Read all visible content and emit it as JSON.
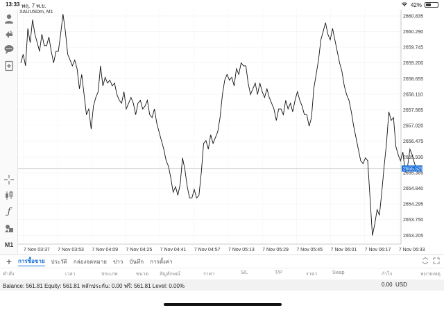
{
  "status_bar": {
    "time": "13:33",
    "date": "พฤ. 7 พ.ย.",
    "battery": "42%",
    "battery_level": 0.42
  },
  "chart": {
    "symbol_title": "XAUUSDm, M1",
    "current_price": "2655.529",
    "line_color": "#111111",
    "price_tag_color": "#1b6fd8"
  },
  "chart_data": {
    "type": "line",
    "title": "XAUUSDm, M1",
    "x_ticks": [
      "7 Nov 03:37",
      "7 Nov 03:53",
      "7 Nov 04:09",
      "7 Nov 04:25",
      "7 Nov 04:41",
      "7 Nov 04:57",
      "7 Nov 05:13",
      "7 Nov 05:29",
      "7 Nov 05:45",
      "7 Nov 06:01",
      "7 Nov 06:17",
      "7 Nov 06:33"
    ],
    "y_ticks": [
      "2660.835",
      "2660.290",
      "2659.745",
      "2659.200",
      "2658.655",
      "2658.110",
      "2657.565",
      "2657.020",
      "2656.475",
      "2655.930",
      "2655.385",
      "2654.840",
      "2654.295",
      "2653.750",
      "2653.205"
    ],
    "ylim": [
      2652.9,
      2661.05
    ],
    "current_price": 2655.529,
    "grid": true,
    "values": [
      2659.2,
      2659.5,
      2659.1,
      2660.4,
      2659.9,
      2660.7,
      2660.2,
      2659.9,
      2659.6,
      2660.2,
      2659.8,
      2659.8,
      2660.1,
      2659.6,
      2659.2,
      2659.6,
      2659.6,
      2660.2,
      2660.9,
      2660.3,
      2659.5,
      2659.3,
      2659.1,
      2659.3,
      2659.0,
      2658.3,
      2658.8,
      2658.1,
      2657.4,
      2657.6,
      2656.9,
      2657.7,
      2658.0,
      2658.2,
      2659.1,
      2658.4,
      2658.7,
      2658.5,
      2658.6,
      2658.4,
      2658.5,
      2658.1,
      2657.9,
      2657.8,
      2658.2,
      2657.6,
      2657.8,
      2658.0,
      2657.8,
      2657.4,
      2657.8,
      2657.9,
      2657.6,
      2657.7,
      2657.9,
      2657.4,
      2657.3,
      2657.6,
      2657.1,
      2656.8,
      2656.5,
      2656.2,
      2655.8,
      2655.6,
      2655.2,
      2654.7,
      2654.9,
      2654.6,
      2655.0,
      2655.9,
      2655.5,
      2654.9,
      2654.5,
      2654.5,
      2654.8,
      2654.5,
      2654.6,
      2655.4,
      2656.4,
      2656.5,
      2656.2,
      2656.7,
      2656.4,
      2656.6,
      2656.8,
      2657.3,
      2658.1,
      2658.6,
      2658.8,
      2658.6,
      2658.7,
      2658.4,
      2659.0,
      2658.8,
      2659.2,
      2659.1,
      2659.1,
      2658.5,
      2658.1,
      2658.3,
      2658.5,
      2658.1,
      2658.5,
      2658.2,
      2658.0,
      2658.3,
      2658.0,
      2657.8,
      2657.6,
      2657.2,
      2657.6,
      2657.6,
      2657.4,
      2657.9,
      2657.6,
      2657.8,
      2657.5,
      2657.9,
      2658.2,
      2657.9,
      2657.7,
      2657.4,
      2657.4,
      2657.0,
      2657.3,
      2658.3,
      2658.8,
      2659.3,
      2660.0,
      2660.3,
      2660.6,
      2660.2,
      2660.0,
      2660.4,
      2660.0,
      2659.6,
      2659.2,
      2658.9,
      2658.4,
      2658.1,
      2657.9,
      2657.5,
      2657.0,
      2656.6,
      2656.2,
      2655.8,
      2655.7,
      2655.9,
      2655.8,
      2654.5,
      2653.2,
      2653.6,
      2654.1,
      2653.9,
      2654.7,
      2655.6,
      2656.4,
      2657.5,
      2657.2,
      2657.3,
      2656.3,
      2656.0,
      2655.8,
      2656.1,
      2655.4,
      2655.6,
      2656.2,
      2656.0,
      2655.7,
      2655.5
    ]
  },
  "left_toolbar": {
    "icons": [
      "user-icon",
      "trade-arrows-icon",
      "chat-icon",
      "new-order-icon",
      "crosshair-icon",
      "candlestick-icon",
      "function-icon",
      "objects-icon"
    ],
    "timeframe": "M1"
  },
  "tabs": {
    "items": [
      {
        "label": "การซื้อขาย",
        "active": true
      },
      {
        "label": "ประวัติ",
        "active": false
      },
      {
        "label": "กล่องจดหมาย",
        "active": false
      },
      {
        "label": "ข่าว",
        "active": false
      },
      {
        "label": "บันทึก",
        "active": false
      },
      {
        "label": "การตั้งค่า",
        "active": false
      }
    ],
    "add_label": "+"
  },
  "table": {
    "columns": [
      "คำสั่ง",
      "เวลา",
      "ประเภท",
      "ขนาด",
      "สัญลักษณ์",
      "ราคา",
      "S/L",
      "T/P",
      "ราคา",
      "Swap",
      "กำไร",
      "หมายเหตุ"
    ]
  },
  "account": {
    "summary": "Balance: 561.81 Equity: 561.81 หลักประกัน: 0.00 ฟรี: 561.81 Level: 0.00%",
    "profit": "0.00",
    "currency": "USD"
  }
}
